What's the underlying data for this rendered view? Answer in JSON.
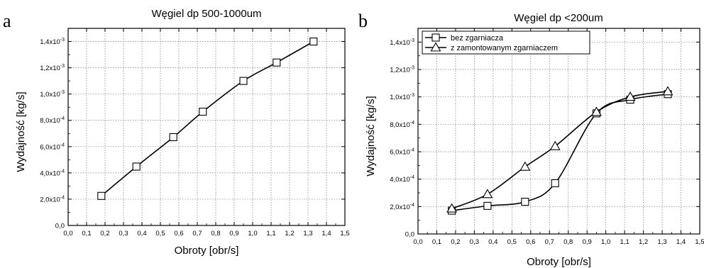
{
  "chart_data": [
    {
      "panel_letter": "a",
      "type": "line",
      "title": "Węgiel dp 500-1000um",
      "xlabel": "Obroty [obr/s]",
      "ylabel": "Wydajność [kg/s]",
      "xlim": [
        0.0,
        1.5
      ],
      "ylim": [
        0.0,
        0.0015
      ],
      "grid": true,
      "x_ticks": [
        "0,0",
        "0,1",
        "0,2",
        "0,3",
        "0,4",
        "0,5",
        "0,6",
        "0,7",
        "0,8",
        "0,9",
        "1,0",
        "1,1",
        "1,2",
        "1,3",
        "1,4",
        "1,5"
      ],
      "y_ticks": [
        {
          "mant": "0,0",
          "exp": ""
        },
        {
          "mant": "2,0x10",
          "exp": "-4"
        },
        {
          "mant": "4,0x10",
          "exp": "-4"
        },
        {
          "mant": "6,0x10",
          "exp": "-4"
        },
        {
          "mant": "8,0x10",
          "exp": "-4"
        },
        {
          "mant": "1,0x10",
          "exp": "-3"
        },
        {
          "mant": "1,2x10",
          "exp": "-3"
        },
        {
          "mant": "1,4x10",
          "exp": "-3"
        }
      ],
      "series": [
        {
          "marker": "square",
          "x": [
            0.18,
            0.37,
            0.57,
            0.73,
            0.95,
            1.13,
            1.33
          ],
          "y": [
            0.000225,
            0.000448,
            0.000672,
            0.000866,
            0.0011,
            0.00124,
            0.0014
          ]
        }
      ]
    },
    {
      "panel_letter": "b",
      "type": "line",
      "title": "Węgiel dp <200um",
      "xlabel": "Obroty [obr/s]",
      "ylabel": "Wydajność [kg/s]",
      "xlim": [
        0.0,
        1.5
      ],
      "ylim": [
        0.0,
        0.0015
      ],
      "grid": true,
      "legend": "top-left",
      "x_ticks": [
        "0,0",
        "0,1",
        "0,2",
        "0,3",
        "0,4",
        "0,5",
        "0,6",
        "0,7",
        "0,8",
        "0,9",
        "1,0",
        "1,1",
        "1,2",
        "1,3",
        "1,4",
        "1,5"
      ],
      "y_ticks": [
        {
          "mant": "0,0",
          "exp": ""
        },
        {
          "mant": "2,0x10",
          "exp": "-4"
        },
        {
          "mant": "4,0x10",
          "exp": "-4"
        },
        {
          "mant": "6,0x10",
          "exp": "-4"
        },
        {
          "mant": "8,0x10",
          "exp": "-4"
        },
        {
          "mant": "1,0x10",
          "exp": "-3"
        },
        {
          "mant": "1,2x10",
          "exp": "-3"
        },
        {
          "mant": "1,4x10",
          "exp": "-3"
        }
      ],
      "series": [
        {
          "name": "bez zgarniacza",
          "marker": "square",
          "x": [
            0.18,
            0.37,
            0.57,
            0.73,
            0.95,
            1.13,
            1.33
          ],
          "y": [
            0.00017,
            0.000205,
            0.000235,
            0.00037,
            0.00088,
            0.00098,
            0.00102
          ]
        },
        {
          "name": "z zamontowanym zgarniaczem",
          "marker": "triangle",
          "x": [
            0.18,
            0.37,
            0.57,
            0.73,
            0.95,
            1.13,
            1.33
          ],
          "y": [
            0.000185,
            0.00029,
            0.00049,
            0.00064,
            0.00089,
            0.001,
            0.00104
          ]
        }
      ]
    }
  ]
}
